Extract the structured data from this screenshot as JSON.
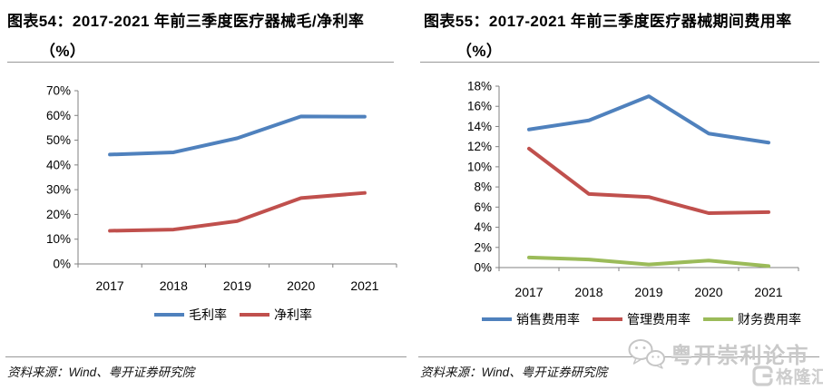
{
  "figures": [
    {
      "title_line1": "图表54：2017-2021 年前三季度医疗器械毛/净利率",
      "title_line2": "（%）",
      "source": "资料来源：Wind、粤开证券研究院"
    },
    {
      "title_line1": "图表55：2017-2021 年前三季度医疗器械期间费用率",
      "title_line2": "（%）",
      "source": "资料来源：Wind、粤开证券研究院"
    }
  ],
  "chart_data": [
    {
      "type": "line",
      "title": "图表54：2017-2021 年前三季度医疗器械毛/净利率（%）",
      "categories": [
        "2017",
        "2018",
        "2019",
        "2020",
        "2021"
      ],
      "series": [
        {
          "name": "毛利率",
          "color": "#4F81BD",
          "values": [
            44.2,
            45.1,
            50.8,
            59.6,
            59.5
          ]
        },
        {
          "name": "净利率",
          "color": "#C0504D",
          "values": [
            13.4,
            13.9,
            17.3,
            26.6,
            28.7
          ]
        }
      ],
      "xlabel": "",
      "ylabel": "",
      "ylim": [
        0,
        70
      ],
      "ytick_step": 10,
      "ytick_suffix": "%",
      "grid": false,
      "legend_position": "bottom"
    },
    {
      "type": "line",
      "title": "图表55：2017-2021 年前三季度医疗器械期间费用率（%）",
      "categories": [
        "2017",
        "2018",
        "2019",
        "2020",
        "2021"
      ],
      "series": [
        {
          "name": "销售费用率",
          "color": "#4F81BD",
          "values": [
            13.7,
            14.6,
            17.0,
            13.3,
            12.4
          ]
        },
        {
          "name": "管理费用率",
          "color": "#C0504D",
          "values": [
            11.8,
            7.3,
            7.0,
            5.4,
            5.5
          ]
        },
        {
          "name": "财务费用率",
          "color": "#9BBB59",
          "values": [
            1.0,
            0.8,
            0.3,
            0.7,
            0.15
          ]
        }
      ],
      "xlabel": "",
      "ylabel": "",
      "ylim": [
        0,
        18
      ],
      "ytick_step": 2,
      "ytick_suffix": "%",
      "grid": false,
      "legend_position": "bottom"
    }
  ],
  "watermark": {
    "wechat_text": "粤开崇利论市",
    "logo_text": "格隆汇"
  },
  "colors": {
    "axis": "#808080",
    "divider": "#999999",
    "series_blue": "#4F81BD",
    "series_red": "#C0504D",
    "series_green": "#9BBB59",
    "watermark_gray": "#c9c9c9"
  }
}
